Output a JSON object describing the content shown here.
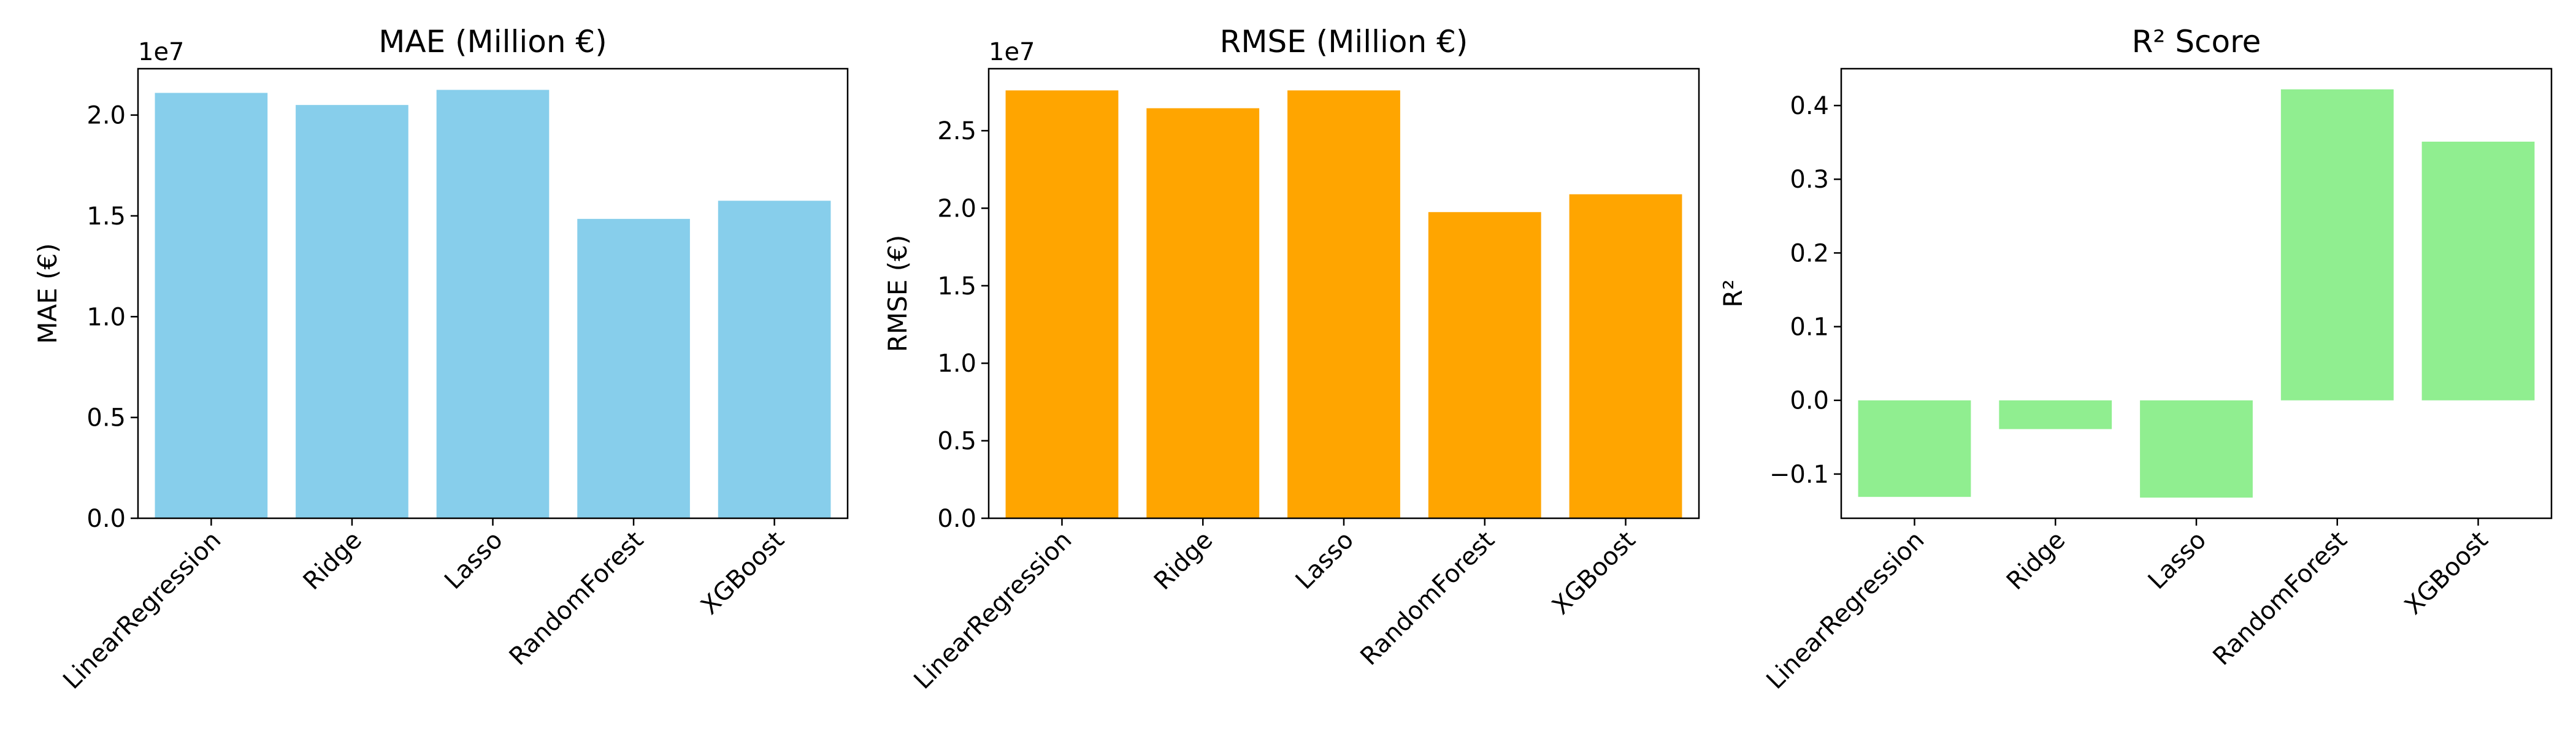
{
  "chart_data": [
    {
      "type": "bar",
      "title": "MAE (Million €)",
      "ylabel": "MAE (€)",
      "offset_text": "1e7",
      "categories": [
        "LinearRegression",
        "Ridge",
        "Lasso",
        "RandomForest",
        "XGBoost"
      ],
      "values": [
        21100000,
        20500000,
        21250000,
        14850000,
        15750000
      ],
      "ylim": [
        0,
        22300000
      ],
      "yticks": [
        0,
        5000000,
        10000000,
        15000000,
        20000000
      ],
      "ytick_labels": [
        "0.0",
        "0.5",
        "1.0",
        "1.5",
        "2.0"
      ],
      "color": "#87CEEB",
      "grid": false
    },
    {
      "type": "bar",
      "title": "RMSE (Million €)",
      "ylabel": "RMSE (€)",
      "offset_text": "1e7",
      "categories": [
        "LinearRegression",
        "Ridge",
        "Lasso",
        "RandomForest",
        "XGBoost"
      ],
      "values": [
        27600000,
        26450000,
        27600000,
        19750000,
        20900000
      ],
      "ylim": [
        0,
        29000000
      ],
      "yticks": [
        0,
        5000000,
        10000000,
        15000000,
        20000000,
        25000000
      ],
      "ytick_labels": [
        "0.0",
        "0.5",
        "1.0",
        "1.5",
        "2.0",
        "2.5"
      ],
      "color": "#FFA500",
      "grid": false
    },
    {
      "type": "bar",
      "title": "R² Score",
      "ylabel": "R²",
      "offset_text": "",
      "categories": [
        "LinearRegression",
        "Ridge",
        "Lasso",
        "RandomForest",
        "XGBoost"
      ],
      "values": [
        -0.131,
        -0.039,
        -0.132,
        0.422,
        0.351
      ],
      "ylim": [
        -0.16,
        0.45
      ],
      "yticks": [
        -0.1,
        0.0,
        0.1,
        0.2,
        0.3,
        0.4
      ],
      "ytick_labels": [
        "−0.1",
        "0.0",
        "0.1",
        "0.2",
        "0.3",
        "0.4"
      ],
      "color": "#90EE90",
      "grid": false
    }
  ]
}
